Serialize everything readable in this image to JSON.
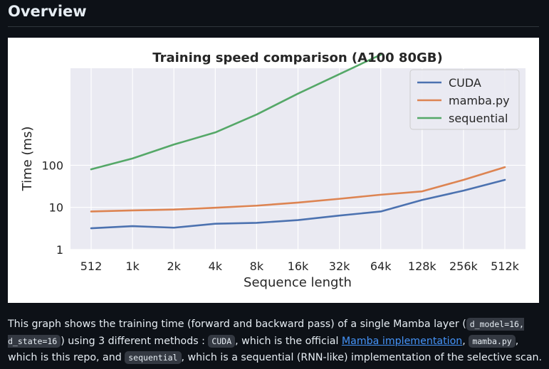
{
  "section": {
    "title": "Overview"
  },
  "paragraph": {
    "t1": "This graph shows the training time (forward and backward pass) of a single Mamba layer (",
    "c1": "d_model=16, d_state=16",
    "t2": ") using 3 different methods : ",
    "c2": "CUDA",
    "t3": ", which is the official ",
    "link": "Mamba implementation",
    "t4": ", ",
    "c3": "mamba.py",
    "t5": ", which is this repo, and ",
    "c4": "sequential",
    "t6": ", which is a sequential (RNN-like) implementation of the selective scan."
  },
  "chart_data": {
    "type": "line",
    "title": "Training speed comparison (A100 80GB)",
    "xlabel": "Sequence length",
    "ylabel": "Time (ms)",
    "yscale": "log",
    "ylim": [
      1,
      20000
    ],
    "yticks": [
      "1",
      "10",
      "100"
    ],
    "categories": [
      "512",
      "1k",
      "2k",
      "4k",
      "8k",
      "16k",
      "32k",
      "64k",
      "128k",
      "256k",
      "512k"
    ],
    "grid": true,
    "legend_position": "top-right",
    "series": [
      {
        "name": "CUDA",
        "color": "#4c72b0",
        "values": [
          3.2,
          3.6,
          3.3,
          4.1,
          4.3,
          5.0,
          6.4,
          8.0,
          15,
          25,
          45
        ]
      },
      {
        "name": "mamba.py",
        "color": "#dd8452",
        "values": [
          8.0,
          8.5,
          8.9,
          9.8,
          11,
          13,
          16,
          20,
          24,
          45,
          90
        ]
      },
      {
        "name": "sequential",
        "color": "#55a868",
        "values": [
          80,
          145,
          310,
          600,
          1600,
          5000,
          14500,
          42000,
          null,
          null,
          null
        ]
      }
    ]
  }
}
